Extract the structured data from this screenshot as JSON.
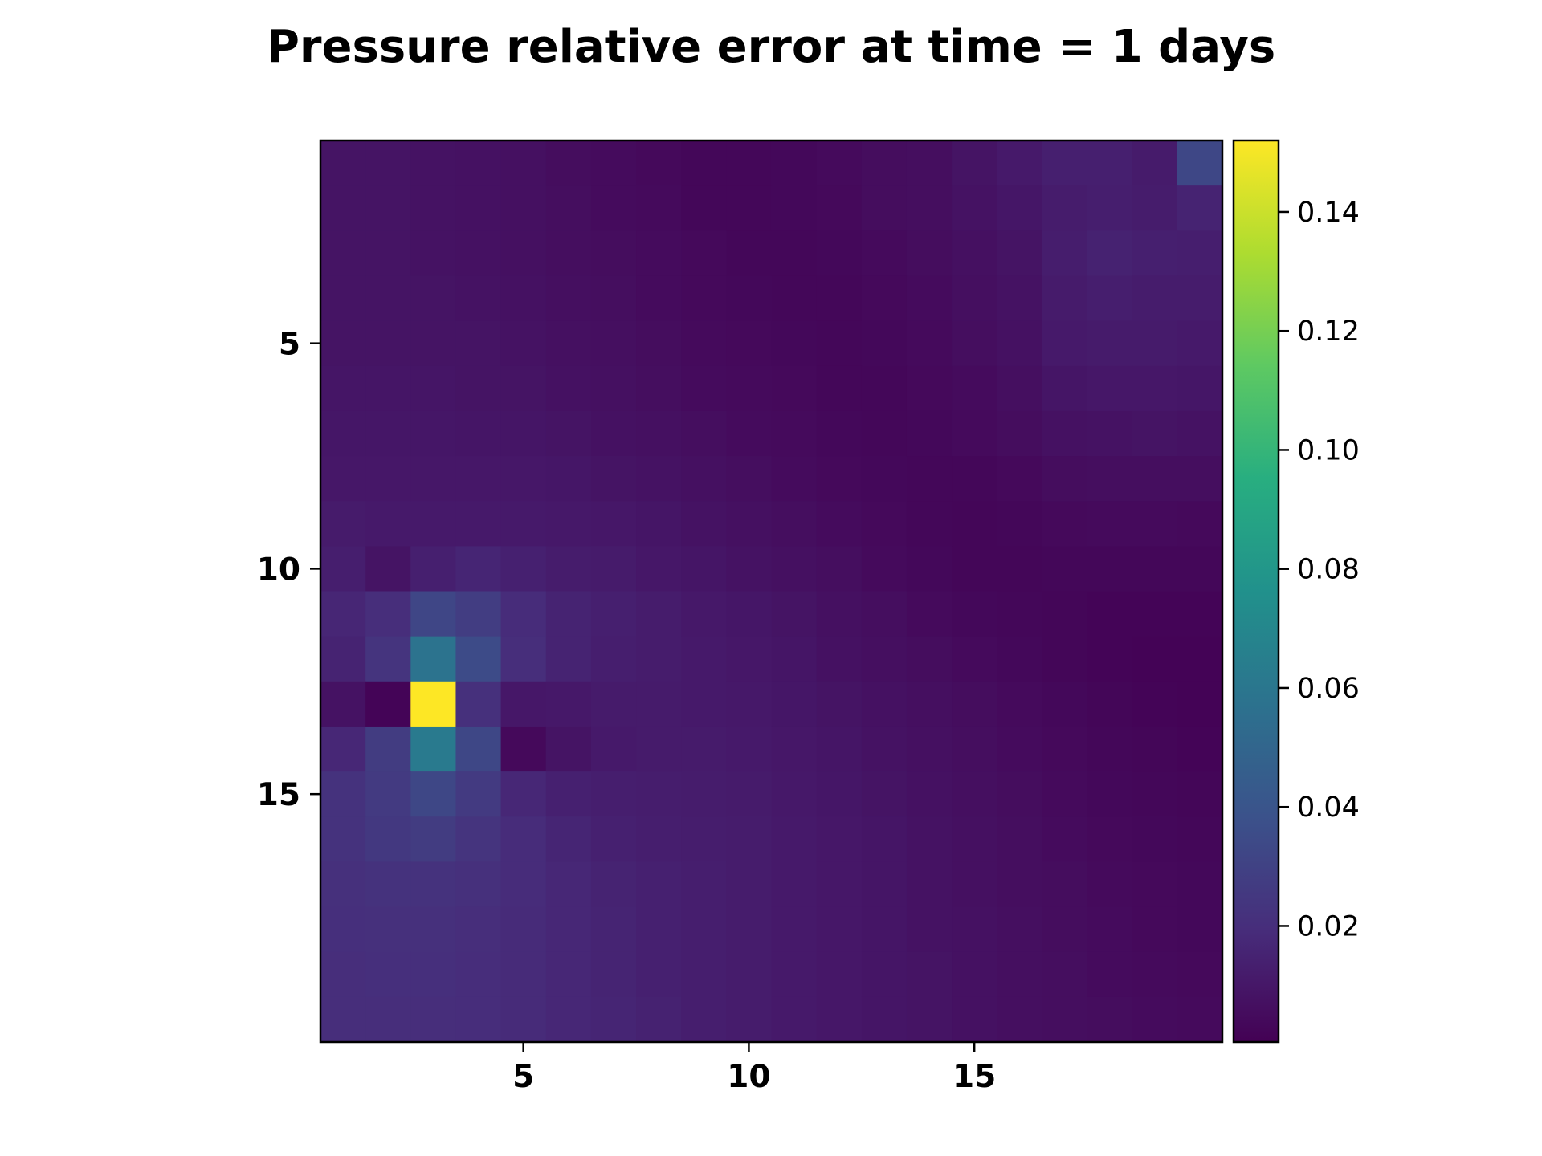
{
  "chart_data": {
    "type": "heatmap",
    "title": "Pressure relative error at time = 1 days",
    "xlabel": "",
    "ylabel": "",
    "x_ticks": [
      5,
      10,
      15
    ],
    "y_ticks": [
      5,
      10,
      15
    ],
    "x_range": [
      0.5,
      20.5
    ],
    "y_range": [
      0.5,
      20.5
    ],
    "colormap": "viridis",
    "colorbar": {
      "range": [
        0.0005,
        0.152
      ],
      "ticks": [
        0.02,
        0.04,
        0.06,
        0.08,
        0.1,
        0.12,
        0.14
      ],
      "tick_labels": [
        "0.02",
        "0.04",
        "0.06",
        "0.08",
        "0.10",
        "0.12",
        "0.14"
      ]
    },
    "values": [
      [
        0.0085,
        0.0085,
        0.008,
        0.0075,
        0.007,
        0.0055,
        0.005,
        0.004,
        0.003,
        0.003,
        0.0035,
        0.0045,
        0.0055,
        0.006,
        0.0085,
        0.011,
        0.0135,
        0.0135,
        0.0115,
        0.033
      ],
      [
        0.0085,
        0.0085,
        0.008,
        0.0075,
        0.007,
        0.006,
        0.005,
        0.0045,
        0.003,
        0.003,
        0.0035,
        0.004,
        0.0055,
        0.006,
        0.008,
        0.0095,
        0.012,
        0.013,
        0.012,
        0.015
      ],
      [
        0.0085,
        0.0085,
        0.008,
        0.0075,
        0.007,
        0.006,
        0.0055,
        0.005,
        0.004,
        0.003,
        0.003,
        0.0035,
        0.0045,
        0.0055,
        0.007,
        0.0085,
        0.0125,
        0.0145,
        0.0135,
        0.013
      ],
      [
        0.0085,
        0.0085,
        0.0085,
        0.008,
        0.0075,
        0.0065,
        0.006,
        0.005,
        0.004,
        0.0035,
        0.003,
        0.003,
        0.004,
        0.005,
        0.0065,
        0.008,
        0.0115,
        0.013,
        0.012,
        0.012
      ],
      [
        0.0085,
        0.0085,
        0.0085,
        0.0085,
        0.008,
        0.007,
        0.0065,
        0.0055,
        0.0045,
        0.004,
        0.0035,
        0.003,
        0.0035,
        0.0045,
        0.006,
        0.0075,
        0.011,
        0.0115,
        0.0115,
        0.011
      ],
      [
        0.009,
        0.009,
        0.009,
        0.0085,
        0.0085,
        0.0075,
        0.007,
        0.006,
        0.005,
        0.0045,
        0.004,
        0.003,
        0.003,
        0.004,
        0.005,
        0.0065,
        0.009,
        0.01,
        0.01,
        0.0095
      ],
      [
        0.0095,
        0.0095,
        0.0095,
        0.009,
        0.009,
        0.0085,
        0.0075,
        0.007,
        0.006,
        0.005,
        0.0045,
        0.0035,
        0.003,
        0.0035,
        0.0045,
        0.0055,
        0.0075,
        0.008,
        0.0085,
        0.008
      ],
      [
        0.01,
        0.01,
        0.01,
        0.01,
        0.01,
        0.0095,
        0.0085,
        0.008,
        0.007,
        0.006,
        0.005,
        0.004,
        0.0035,
        0.003,
        0.003,
        0.004,
        0.0055,
        0.006,
        0.006,
        0.006
      ],
      [
        0.0115,
        0.011,
        0.011,
        0.011,
        0.011,
        0.0105,
        0.01,
        0.009,
        0.008,
        0.007,
        0.006,
        0.005,
        0.004,
        0.003,
        0.0025,
        0.003,
        0.004,
        0.0045,
        0.0045,
        0.004
      ],
      [
        0.013,
        0.0085,
        0.0135,
        0.016,
        0.014,
        0.012,
        0.0115,
        0.01,
        0.009,
        0.008,
        0.007,
        0.006,
        0.0045,
        0.0035,
        0.0025,
        0.0025,
        0.003,
        0.003,
        0.003,
        0.003
      ],
      [
        0.0165,
        0.02,
        0.032,
        0.0275,
        0.019,
        0.015,
        0.0135,
        0.012,
        0.0105,
        0.0095,
        0.0085,
        0.007,
        0.006,
        0.0045,
        0.0035,
        0.003,
        0.0025,
        0.002,
        0.002,
        0.002
      ],
      [
        0.015,
        0.023,
        0.058,
        0.035,
        0.02,
        0.015,
        0.013,
        0.012,
        0.011,
        0.01,
        0.009,
        0.0075,
        0.0065,
        0.0055,
        0.0045,
        0.0035,
        0.0025,
        0.002,
        0.0015,
        0.0015
      ],
      [
        0.008,
        0.002,
        0.152,
        0.021,
        0.01,
        0.0105,
        0.0115,
        0.0115,
        0.011,
        0.0105,
        0.0095,
        0.0085,
        0.0075,
        0.0065,
        0.0055,
        0.0045,
        0.0035,
        0.0025,
        0.002,
        0.0015
      ],
      [
        0.017,
        0.027,
        0.062,
        0.033,
        0.004,
        0.0085,
        0.011,
        0.0115,
        0.0115,
        0.011,
        0.01,
        0.009,
        0.008,
        0.007,
        0.006,
        0.005,
        0.004,
        0.003,
        0.0025,
        0.002
      ],
      [
        0.022,
        0.026,
        0.033,
        0.026,
        0.017,
        0.014,
        0.013,
        0.0125,
        0.012,
        0.0115,
        0.0105,
        0.0095,
        0.0085,
        0.0075,
        0.0065,
        0.0055,
        0.0045,
        0.0035,
        0.003,
        0.0025
      ],
      [
        0.022,
        0.025,
        0.027,
        0.023,
        0.019,
        0.016,
        0.014,
        0.013,
        0.0125,
        0.012,
        0.011,
        0.01,
        0.009,
        0.008,
        0.007,
        0.006,
        0.005,
        0.004,
        0.0035,
        0.003
      ],
      [
        0.021,
        0.022,
        0.022,
        0.021,
        0.019,
        0.017,
        0.015,
        0.014,
        0.013,
        0.012,
        0.011,
        0.01,
        0.009,
        0.008,
        0.007,
        0.006,
        0.0055,
        0.0045,
        0.004,
        0.0035
      ],
      [
        0.0205,
        0.021,
        0.021,
        0.02,
        0.0185,
        0.017,
        0.0155,
        0.014,
        0.013,
        0.012,
        0.011,
        0.01,
        0.009,
        0.008,
        0.0075,
        0.0065,
        0.0055,
        0.005,
        0.004,
        0.0035
      ],
      [
        0.02,
        0.0205,
        0.0205,
        0.0195,
        0.0185,
        0.017,
        0.0155,
        0.014,
        0.013,
        0.012,
        0.011,
        0.01,
        0.009,
        0.0085,
        0.0075,
        0.0065,
        0.006,
        0.005,
        0.0045,
        0.004
      ],
      [
        0.02,
        0.02,
        0.02,
        0.0195,
        0.0185,
        0.017,
        0.016,
        0.0145,
        0.013,
        0.012,
        0.011,
        0.01,
        0.009,
        0.0085,
        0.0075,
        0.0065,
        0.006,
        0.0055,
        0.005,
        0.0045
      ]
    ]
  }
}
